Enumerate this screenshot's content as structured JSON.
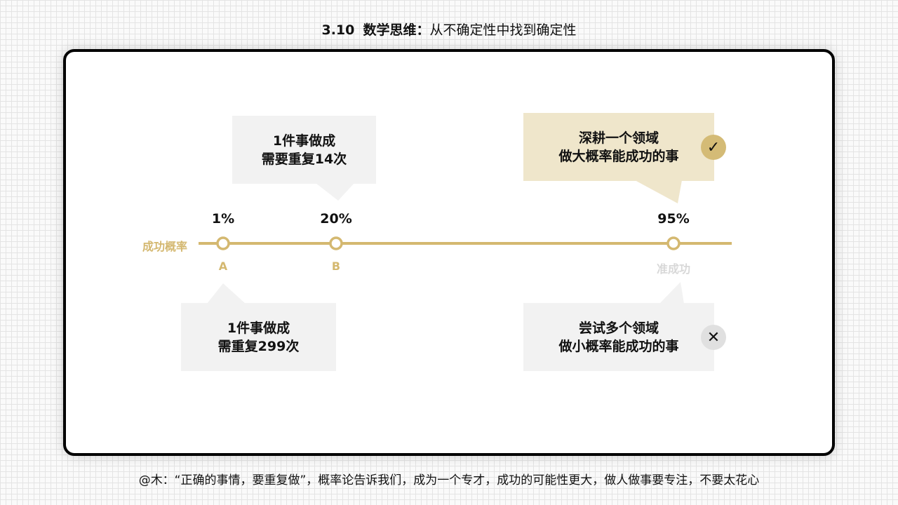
{
  "header": {
    "section": "3.10",
    "topic": "数学思维：",
    "title": "从不确定性中找到确定性"
  },
  "timeline": {
    "axis_label": "成功概率",
    "points": [
      {
        "percent": "1%",
        "label": "A",
        "value": 1
      },
      {
        "percent": "20%",
        "label": "B",
        "value": 20
      },
      {
        "percent": "95%",
        "label": "准成功",
        "value": 95
      }
    ]
  },
  "callouts": {
    "b": {
      "line1": "1件事做成",
      "line2": "需要重复14次"
    },
    "a": {
      "line1": "1件事做成",
      "line2": "需重复299次"
    },
    "good": {
      "line1": "深耕一个领域",
      "line2": "做大概率能成功的事",
      "icon": "check-icon",
      "symbol": "✓"
    },
    "bad": {
      "line1": "尝试多个领域",
      "line2": "做小概率能成功的事",
      "icon": "close-icon",
      "symbol": "✕"
    }
  },
  "colors": {
    "accent": "#d4b870",
    "gold_box": "#efe6cb",
    "gray_box": "#f2f2f2"
  },
  "caption": "@木：“正确的事情，要重复做”，概率论告诉我们，成为一个专才，成功的可能性更大，做人做事要专注，不要太花心"
}
